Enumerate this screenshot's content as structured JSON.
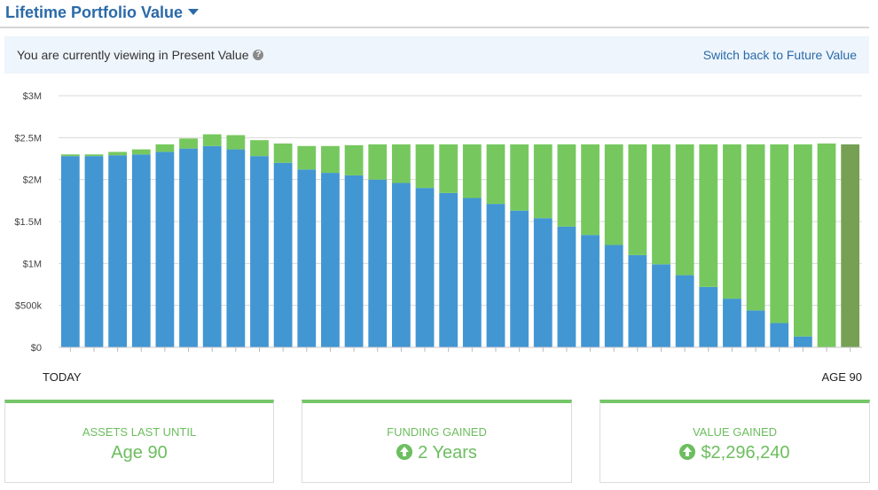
{
  "header": {
    "title": "Lifetime Portfolio Value"
  },
  "banner": {
    "text": "You are currently viewing in Present Value",
    "help_icon": "question-circle-icon",
    "link": "Switch back to Future Value"
  },
  "chart_data": {
    "type": "bar",
    "stacked": true,
    "yticks": [
      "$0",
      "$500k",
      "$1M",
      "$1.5M",
      "$2M",
      "$2.5M",
      "$3M"
    ],
    "ylim": [
      0,
      3000000
    ],
    "xlabel_start": "TODAY",
    "xlabel_end": "AGE 90",
    "grid": true,
    "highlight_index": 33,
    "colors": {
      "blue": "#4296d2",
      "green": "#76c85e",
      "highlight_blue": "#0f5d96",
      "highlight_green": "#76a154",
      "grid": "#d8d8d8"
    },
    "series": [
      {
        "name": "blue",
        "values": [
          2280000,
          2280000,
          2290000,
          2300000,
          2330000,
          2370000,
          2400000,
          2360000,
          2280000,
          2200000,
          2120000,
          2080000,
          2050000,
          2000000,
          1960000,
          1900000,
          1840000,
          1780000,
          1710000,
          1630000,
          1540000,
          1440000,
          1340000,
          1220000,
          1100000,
          990000,
          860000,
          720000,
          580000,
          440000,
          290000,
          130000,
          0,
          0
        ]
      },
      {
        "name": "green",
        "values": [
          20000,
          20000,
          40000,
          60000,
          90000,
          120000,
          140000,
          170000,
          190000,
          230000,
          280000,
          320000,
          360000,
          420000,
          460000,
          520000,
          580000,
          640000,
          710000,
          790000,
          880000,
          980000,
          1080000,
          1200000,
          1320000,
          1430000,
          1560000,
          1700000,
          1840000,
          1980000,
          2130000,
          2290000,
          2430000,
          2420000
        ]
      }
    ]
  },
  "cards": [
    {
      "label": "ASSETS LAST UNTIL",
      "value": "Age 90",
      "icon": ""
    },
    {
      "label": "FUNDING GAINED",
      "value": "2 Years",
      "icon": "arrow-up-circle-icon"
    },
    {
      "label": "VALUE GAINED",
      "value": "$2,296,240",
      "icon": "arrow-up-circle-icon"
    }
  ]
}
